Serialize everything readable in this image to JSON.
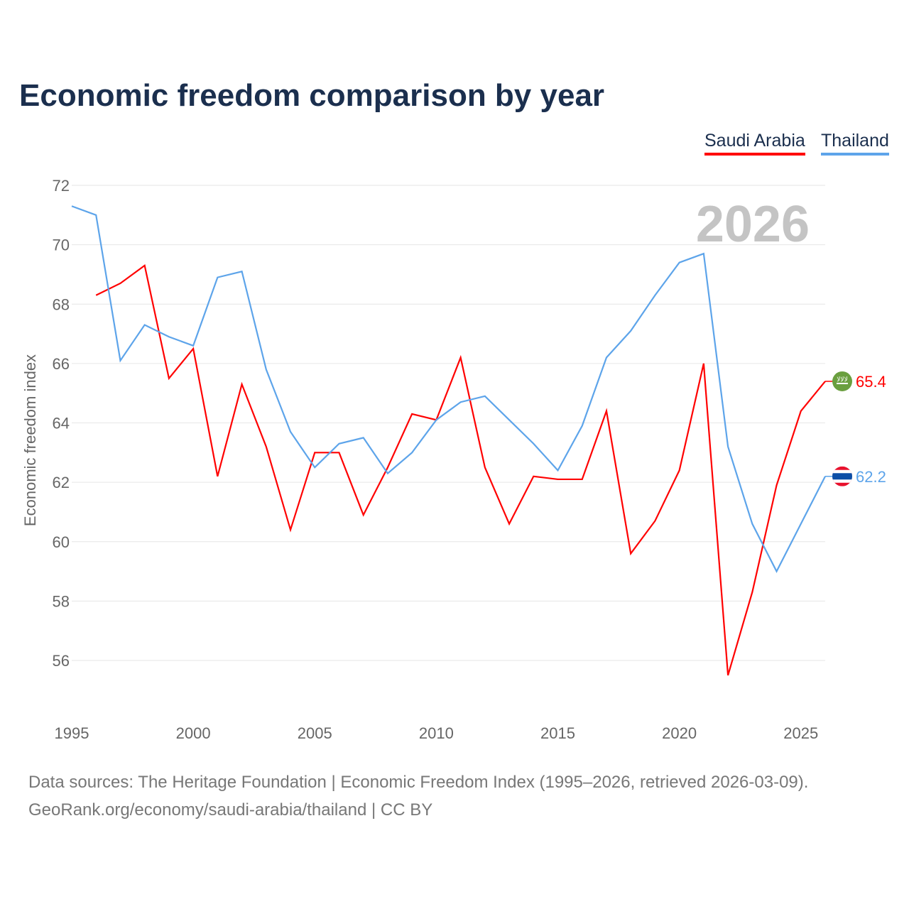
{
  "chart_data": {
    "type": "line",
    "title": "Economic freedom comparison by year",
    "xlabel": "",
    "ylabel": "Economic freedom index",
    "xlim": [
      1995,
      2026
    ],
    "ylim": [
      54,
      72
    ],
    "yticks": [
      56,
      58,
      60,
      62,
      64,
      66,
      68,
      70,
      72
    ],
    "xticks": [
      1995,
      2000,
      2005,
      2010,
      2015,
      2020,
      2025
    ],
    "grid": true,
    "legend_position": "top-right",
    "year_watermark": "2026",
    "series": [
      {
        "name": "Saudi Arabia",
        "color": "#ff0000",
        "end_label": "65.4",
        "flag": "saudi-arabia",
        "x": [
          1996,
          1997,
          1998,
          1999,
          2000,
          2001,
          2002,
          2003,
          2004,
          2005,
          2006,
          2007,
          2008,
          2009,
          2010,
          2011,
          2012,
          2013,
          2014,
          2015,
          2016,
          2017,
          2018,
          2019,
          2020,
          2021,
          2022,
          2023,
          2024,
          2025,
          2026
        ],
        "values": [
          68.3,
          68.7,
          69.3,
          65.5,
          66.5,
          62.2,
          65.3,
          63.2,
          60.4,
          63.0,
          63.0,
          60.9,
          62.5,
          64.3,
          64.1,
          66.2,
          62.5,
          60.6,
          62.2,
          62.1,
          62.1,
          64.4,
          59.6,
          60.7,
          62.4,
          66.0,
          55.5,
          58.3,
          61.9,
          64.4,
          65.4
        ]
      },
      {
        "name": "Thailand",
        "color": "#5da4ea",
        "end_label": "62.2",
        "flag": "thailand",
        "x": [
          1995,
          1996,
          1997,
          1998,
          1999,
          2000,
          2001,
          2002,
          2003,
          2004,
          2005,
          2006,
          2007,
          2008,
          2009,
          2010,
          2011,
          2012,
          2013,
          2014,
          2015,
          2016,
          2017,
          2018,
          2019,
          2020,
          2021,
          2022,
          2023,
          2024,
          2025,
          2026
        ],
        "values": [
          71.3,
          71.0,
          66.1,
          67.3,
          66.9,
          66.6,
          68.9,
          69.1,
          65.8,
          63.7,
          62.5,
          63.3,
          63.5,
          62.3,
          63.0,
          64.1,
          64.7,
          64.9,
          64.1,
          63.3,
          62.4,
          63.9,
          66.2,
          67.1,
          68.3,
          69.4,
          69.7,
          63.2,
          60.6,
          59.0,
          60.6,
          62.2
        ]
      }
    ]
  },
  "footer": {
    "line1": "Data sources: The Heritage Foundation | Economic Freedom Index (1995–2026, retrieved 2026-03-09).",
    "line2": "GeoRank.org/economy/saudi-arabia/thailand | CC BY"
  }
}
